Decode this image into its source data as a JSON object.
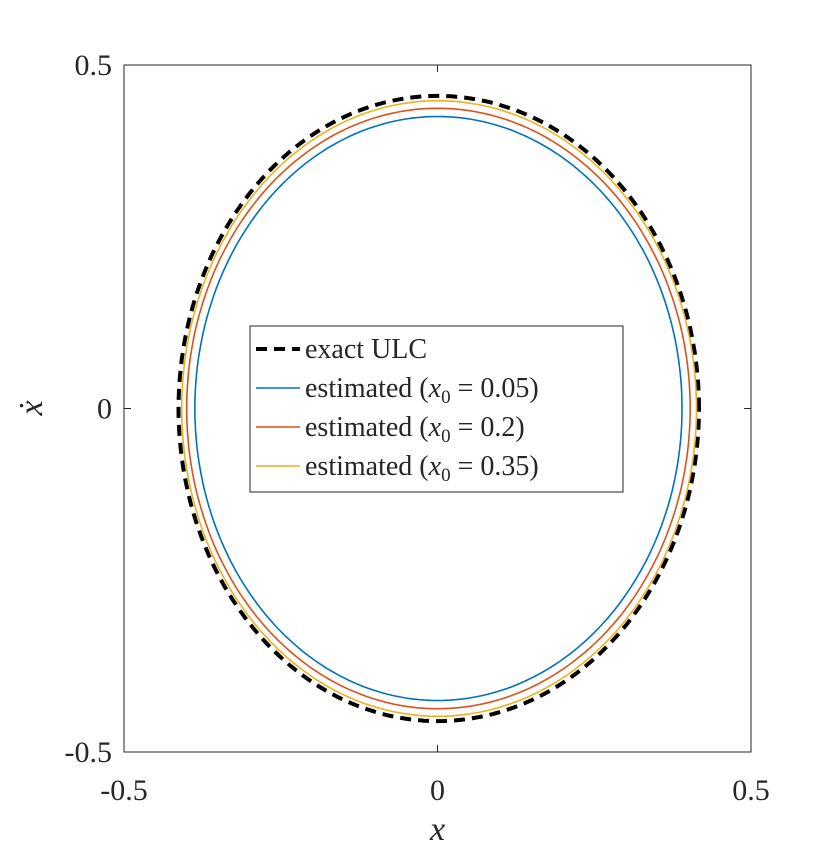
{
  "chart_data": {
    "type": "line",
    "title": "",
    "xlabel": "x",
    "ylabel": "ẋ",
    "xlim": [
      -0.5,
      0.5
    ],
    "ylim": [
      -0.5,
      0.5
    ],
    "x_ticks": [
      -0.5,
      0,
      0.5
    ],
    "y_ticks": [
      -0.5,
      0,
      0.5
    ],
    "x_tick_labels": [
      "-0.5",
      "0",
      "0.5"
    ],
    "y_tick_labels": [
      "-0.5",
      "0",
      "0.5"
    ],
    "grid": false,
    "box": true,
    "legend_position": "center",
    "series": [
      {
        "name": "exact ULC",
        "name_parts": {
          "pre": "exact ULC",
          "var": "",
          "sub": "",
          "post": ""
        },
        "style": "dashed",
        "color": "#000000",
        "shape": "closed-curve",
        "center": [
          0.0,
          0.0
        ],
        "x_extent": [
          -0.413,
          0.417
        ],
        "y_extent": [
          -0.455,
          0.455
        ]
      },
      {
        "name": "estimated (x0 = 0.05)",
        "name_parts": {
          "pre": "estimated (",
          "var": "x",
          "sub": "0",
          "post": " = 0.05)"
        },
        "style": "solid",
        "color": "#0072BD",
        "shape": "closed-curve",
        "center": [
          0.0,
          0.0
        ],
        "x_extent": [
          -0.387,
          0.39
        ],
        "y_extent": [
          -0.425,
          0.425
        ]
      },
      {
        "name": "estimated (x0 = 0.2)",
        "name_parts": {
          "pre": "estimated (",
          "var": "x",
          "sub": "0",
          "post": " = 0.2)"
        },
        "style": "solid",
        "color": "#D95319",
        "shape": "closed-curve",
        "center": [
          0.0,
          0.0
        ],
        "x_extent": [
          -0.4,
          0.403
        ],
        "y_extent": [
          -0.437,
          0.437
        ]
      },
      {
        "name": "estimated (x0 = 0.35)",
        "name_parts": {
          "pre": "estimated (",
          "var": "x",
          "sub": "0",
          "post": " = 0.35)"
        },
        "style": "solid",
        "color": "#EDB120",
        "shape": "closed-curve",
        "center": [
          0.0,
          0.0
        ],
        "x_extent": [
          -0.408,
          0.413
        ],
        "y_extent": [
          -0.448,
          0.448
        ]
      }
    ]
  }
}
